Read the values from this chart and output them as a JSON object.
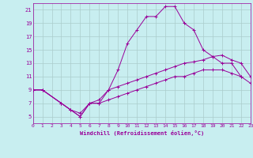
{
  "xlabel": "Windchill (Refroidissement éolien,°C)",
  "bg_color": "#c8eef0",
  "grid_color": "#aacccc",
  "line_color": "#990099",
  "xmin": 0,
  "xmax": 23,
  "ymin": 4,
  "ymax": 22,
  "yticks": [
    5,
    7,
    9,
    11,
    13,
    15,
    17,
    19,
    21
  ],
  "xticks": [
    0,
    1,
    2,
    3,
    4,
    5,
    6,
    7,
    8,
    9,
    10,
    11,
    12,
    13,
    14,
    15,
    16,
    17,
    18,
    19,
    20,
    21,
    22,
    23
  ],
  "line1_x": [
    0,
    1,
    3,
    4,
    5,
    6,
    7,
    8,
    9,
    10,
    11,
    12,
    13,
    14,
    15,
    16,
    17,
    18,
    19,
    20,
    21,
    22
  ],
  "line1_y": [
    9,
    9,
    7,
    6,
    5,
    7,
    7,
    9,
    12,
    16,
    18,
    20,
    20,
    21.5,
    21.5,
    19,
    18,
    15,
    14,
    13,
    13,
    11
  ],
  "line2_x": [
    0,
    1,
    3,
    4,
    5,
    6,
    7,
    8,
    9,
    10,
    11,
    12,
    13,
    14,
    15,
    16,
    17,
    18,
    19,
    20,
    21,
    22,
    23
  ],
  "line2_y": [
    9,
    9,
    7,
    6,
    5,
    7,
    7.5,
    9,
    9.5,
    10,
    10.5,
    11,
    11.5,
    12,
    12.5,
    13,
    13.2,
    13.5,
    14,
    14.2,
    13.5,
    13,
    11
  ],
  "line3_x": [
    0,
    1,
    3,
    4,
    5,
    6,
    7,
    8,
    9,
    10,
    11,
    12,
    13,
    14,
    15,
    16,
    17,
    18,
    19,
    20,
    21,
    22,
    23
  ],
  "line3_y": [
    9,
    9,
    7,
    6,
    5.5,
    7,
    7,
    7.5,
    8,
    8.5,
    9,
    9.5,
    10,
    10.5,
    11,
    11,
    11.5,
    12,
    12,
    12,
    11.5,
    11,
    10
  ]
}
